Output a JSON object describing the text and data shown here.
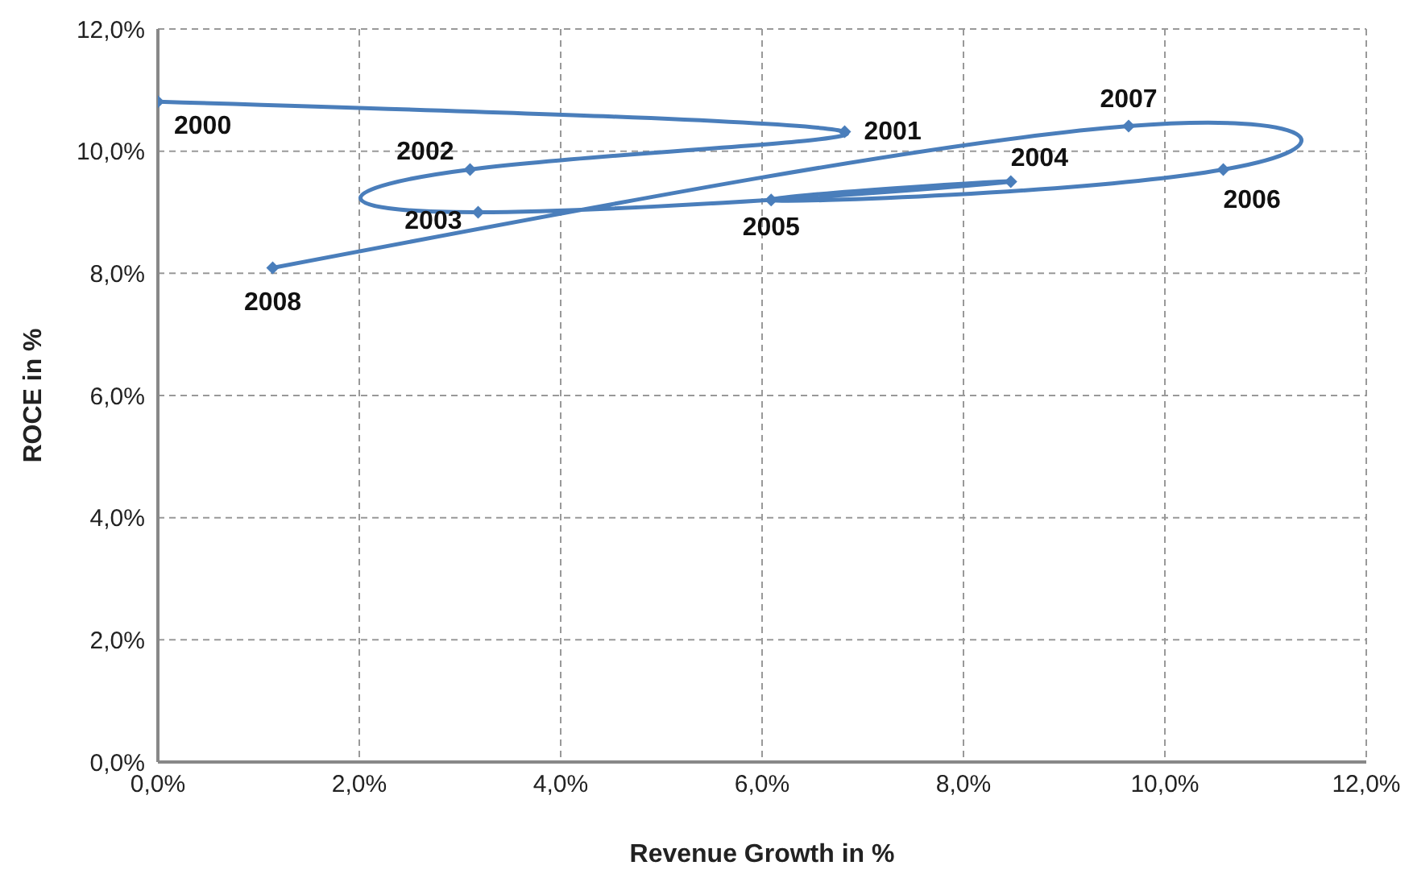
{
  "chart_data": {
    "type": "line",
    "xlabel": "Revenue Growth in %",
    "ylabel": "ROCE in %",
    "x": [
      0,
      6.82,
      3.1,
      3.18,
      8.47,
      6.09,
      10.58,
      9.64,
      1.14
    ],
    "series": [
      {
        "color": "#4a7ebb",
        "values": [
          10.81,
          10.32,
          9.7,
          9.0,
          9.5,
          9.2,
          9.7,
          10.41,
          8.09
        ]
      }
    ],
    "annotations": [
      {
        "text": "2000",
        "x": 0,
        "y": 10.81
      },
      {
        "text": "2001",
        "x": 6.82,
        "y": 10.32
      },
      {
        "text": "2002",
        "x": 3.1,
        "y": 9.7
      },
      {
        "text": "2003",
        "x": 3.18,
        "y": 9.0
      },
      {
        "text": "2004",
        "x": 8.47,
        "y": 9.5
      },
      {
        "text": "2005",
        "x": 6.09,
        "y": 9.2
      },
      {
        "text": "2006",
        "x": 10.58,
        "y": 9.7
      },
      {
        "text": "2007",
        "x": 9.64,
        "y": 10.41
      },
      {
        "text": "2008",
        "x": 1.14,
        "y": 8.09
      }
    ],
    "xlim": [
      0,
      12
    ],
    "ylim": [
      0,
      12
    ],
    "xticks": [
      {
        "value": 0,
        "label": "0,0%"
      },
      {
        "value": 2,
        "label": "2,0%"
      },
      {
        "value": 4,
        "label": "4,0%"
      },
      {
        "value": 6,
        "label": "6,0%"
      },
      {
        "value": 8,
        "label": "8,0%"
      },
      {
        "value": 10,
        "label": "10,0%"
      },
      {
        "value": 12,
        "label": "12,0%"
      }
    ],
    "yticks": [
      {
        "value": 0,
        "label": "0,0%"
      },
      {
        "value": 2,
        "label": "2,0%"
      },
      {
        "value": 4,
        "label": "4,0%"
      },
      {
        "value": 6,
        "label": "6,0%"
      },
      {
        "value": 8,
        "label": "8,0%"
      },
      {
        "value": 10,
        "label": "10,0%"
      },
      {
        "value": 12,
        "label": "12,0%"
      }
    ],
    "grid": true,
    "marker": "diamond",
    "line_style": "solid",
    "legend": false
  }
}
